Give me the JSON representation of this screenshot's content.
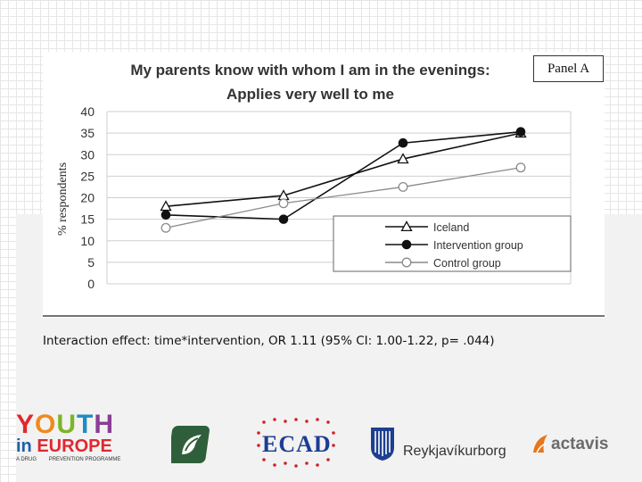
{
  "chart_data": {
    "type": "line",
    "title_line1": "My parents know with whom I am in the evenings:",
    "title_line2": "Applies very well to me",
    "panel_label": "Panel A",
    "ylabel": "% respondents",
    "xlabel": "",
    "ylim": [
      0,
      40
    ],
    "yticks": [
      "0",
      "5",
      "10",
      "15",
      "20",
      "25",
      "30",
      "35",
      "40"
    ],
    "x": [
      1,
      2,
      3,
      4
    ],
    "grid": true,
    "legend_position": "bottom-right",
    "series": [
      {
        "name": "Iceland",
        "marker": "triangle-open",
        "color": "#111111",
        "values": [
          18,
          20.5,
          29,
          35
        ]
      },
      {
        "name": "Intervention group",
        "marker": "circle-filled",
        "color": "#111111",
        "values": [
          16,
          15,
          32.7,
          35.3
        ]
      },
      {
        "name": "Control group",
        "marker": "circle-open",
        "color": "#8a8a8a",
        "values": [
          13,
          18.7,
          22.5,
          27
        ]
      }
    ]
  },
  "caption": "Interaction effect: time*intervention, OR 1.11 (95% CI: 1.00-1.22, p= .044)",
  "logos": {
    "youth_top": "YOUTH",
    "youth_mid_a": "in",
    "youth_mid_b": "EUROPE",
    "youth_sub_a": "A DRUG",
    "youth_sub_b": "PREVENTION PROGRAMME",
    "ecad": "ECAD",
    "reykjavik": "Reykjavíkurborg",
    "actavis": "actavis"
  }
}
